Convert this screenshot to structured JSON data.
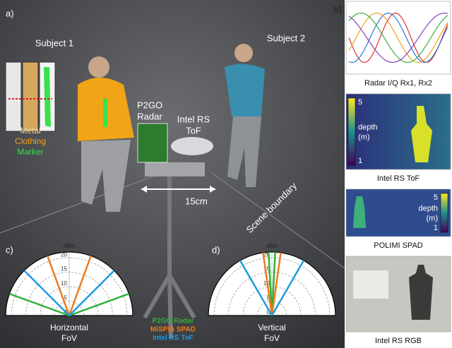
{
  "panel_labels": [
    "a)",
    "b)",
    "c)",
    "d)"
  ],
  "scene": {
    "subject_1": "Subject 1",
    "subject_2": "Subject 2",
    "marker_legend": [
      {
        "text": "Metal",
        "color": "#e9d7b0"
      },
      {
        "text": "Clothing",
        "color": "#f2a31b"
      },
      {
        "text": "Marker",
        "color": "#39e14a"
      }
    ],
    "radar_label": [
      "P2GO",
      "Radar"
    ],
    "tof_label": [
      "Intel RS",
      "ToF"
    ],
    "baseline": "15cm",
    "boundary": "Scene boundary"
  },
  "polar_charts": [
    {
      "unit": "dBm",
      "rlim": [
        0,
        22
      ],
      "rticks": [
        0,
        5,
        10,
        15,
        20
      ],
      "title": [
        "Horizontal",
        "FoV"
      ],
      "series": [
        {
          "name": "P2GO Radar",
          "color": "#2fb23a",
          "half_angle": 70
        },
        {
          "name": "MiSPIA SPAD",
          "color": "#f07a1a",
          "half_angle": 20
        },
        {
          "name": "Intel RS ToF",
          "color": "#1e9be0",
          "half_angle": 45
        }
      ]
    },
    {
      "unit": "dBm",
      "rlim": [
        0,
        22
      ],
      "rticks": [
        0,
        5,
        10,
        15,
        20
      ],
      "title": [
        "Vertical",
        "FoV"
      ],
      "series": [
        {
          "color": "#2fb23a",
          "half_angle": 3
        },
        {
          "color": "#f07a1a",
          "half_angle": 8
        },
        {
          "color": "#1e9be0",
          "half_angle": 30
        }
      ]
    }
  ],
  "side_panels": [
    {
      "caption": "Radar I/Q Rx1, Rx2"
    },
    {
      "caption": "Intel RS ToF",
      "colorbar": {
        "label": [
          "depth",
          "(m)"
        ],
        "ticks": [
          5,
          1
        ]
      }
    },
    {
      "caption": "POLIMI SPAD",
      "colorbar": {
        "label": [
          "depth",
          "(m)"
        ],
        "ticks": [
          5,
          1
        ]
      }
    },
    {
      "caption": "Intel RS RGB"
    }
  ]
}
